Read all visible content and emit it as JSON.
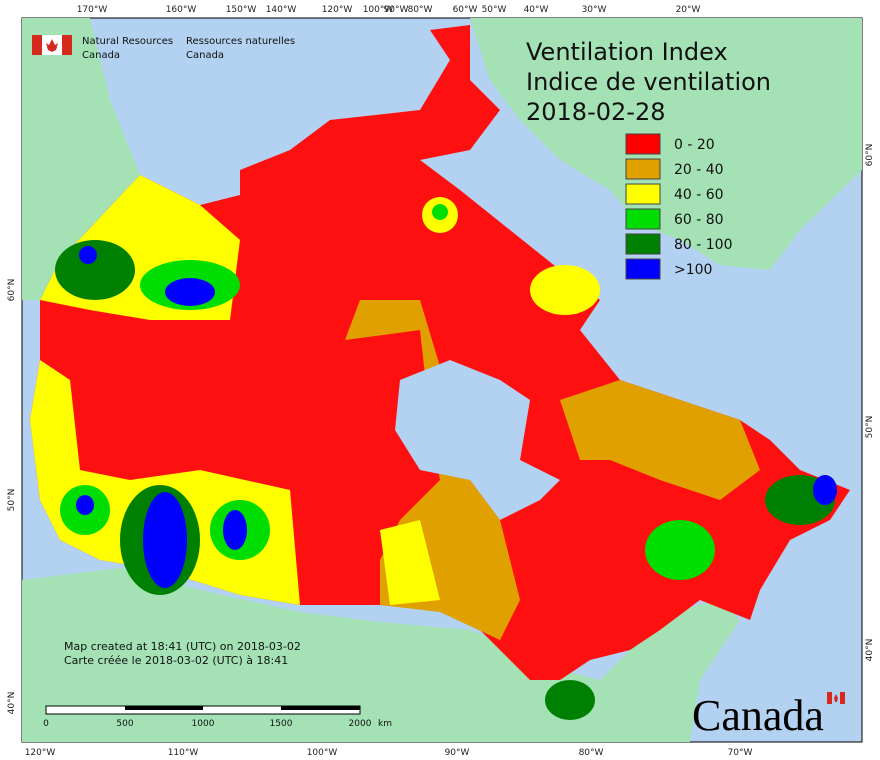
{
  "header": {
    "agency_en": [
      "Natural Resources",
      "Canada"
    ],
    "agency_fr": [
      "Ressources naturelles",
      "Canada"
    ]
  },
  "title": [
    "Ventilation Index",
    "Indice de ventilation",
    "2018-02-28"
  ],
  "legend": [
    {
      "label": "0 - 20",
      "color": "#ff0000"
    },
    {
      "label": "20 - 40",
      "color": "#e0a000"
    },
    {
      "label": "40 - 60",
      "color": "#ffff00"
    },
    {
      "label": "60 - 80",
      "color": "#00dd00"
    },
    {
      "label": "80 - 100",
      "color": "#008000"
    },
    {
      "label": ">100",
      "color": "#0000ff"
    }
  ],
  "top_longitudes": [
    "170°W",
    "160°W",
    "150°W",
    "140°W",
    "120°W",
    "100°W",
    "90°W",
    "80°W",
    "60°W",
    "50°W",
    "40°W",
    "30°W",
    "20°W"
  ],
  "bottom_longitudes": [
    "120°W",
    "110°W",
    "100°W",
    "90°W",
    "80°W",
    "70°W"
  ],
  "left_latitudes": [
    "60°N",
    "50°N",
    "40°N"
  ],
  "right_latitudes": [
    "60°N",
    "50°N",
    "40°N"
  ],
  "credits": [
    "Map created at 18:41 (UTC) on 2018-03-02",
    "Carte créée le 2018-03-02 (UTC) à 18:41"
  ],
  "scale_bar": {
    "labels": [
      "0",
      "500",
      "1000",
      "1500",
      "2000"
    ],
    "unit": "km"
  },
  "wordmark": "Canada"
}
